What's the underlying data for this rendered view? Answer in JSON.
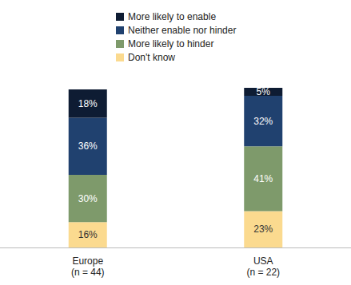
{
  "chart_data": {
    "type": "bar",
    "stacked": true,
    "data_labels": true,
    "tick_labels": "x",
    "grid": false,
    "legend": "top",
    "categories": [
      "Europe\n(n = 44)",
      "USA\n(n = 22)"
    ],
    "ylim": [
      0,
      101
    ],
    "series": [
      {
        "name": "More likely to enable",
        "color": "#0e1c33",
        "values": [
          18,
          5
        ],
        "value_labels": [
          "18%",
          "5%"
        ]
      },
      {
        "name": "Neither enable nor hinder",
        "color": "#20416f",
        "values": [
          36,
          32
        ],
        "value_labels": [
          "36%",
          "32%"
        ]
      },
      {
        "name": "More likely to hinder",
        "color": "#7e9a6b",
        "values": [
          30,
          41
        ],
        "value_labels": [
          "30%",
          "41%"
        ]
      },
      {
        "name": "Don't know",
        "color": "#fbda8f",
        "values": [
          16,
          23
        ],
        "value_labels": [
          "16%",
          "23%"
        ]
      }
    ]
  }
}
